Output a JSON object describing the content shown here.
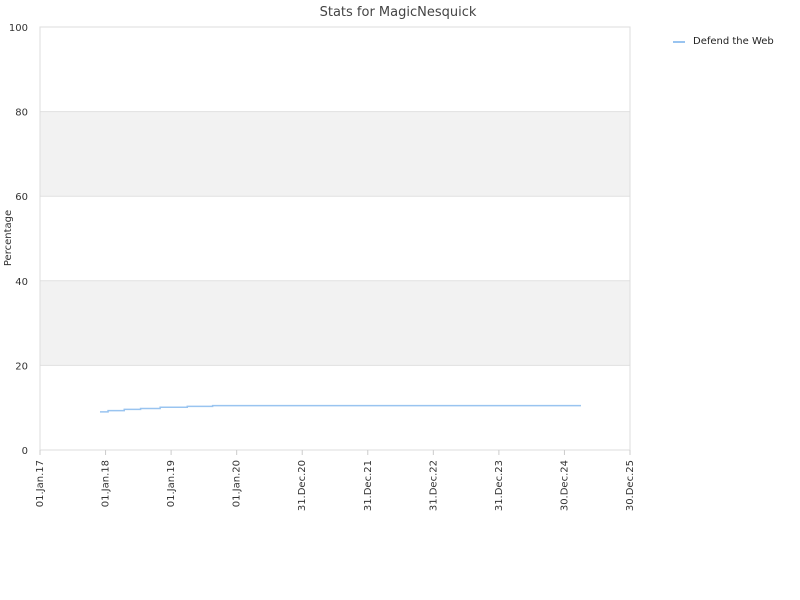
{
  "chart_data": {
    "type": "line",
    "title": "Stats for MagicNesquick",
    "xlabel": "",
    "ylabel": "Percentage",
    "ylim": [
      0,
      100
    ],
    "yticks": [
      0,
      20,
      40,
      60,
      80,
      100
    ],
    "xlim": [
      "2017-01-01",
      "2025-12-30"
    ],
    "xtick_labels": [
      "01.Jan.17",
      "01.Jan.18",
      "01.Jan.19",
      "01.Jan.20",
      "31.Dec.20",
      "31.Dec.21",
      "31.Dec.22",
      "31.Dec.23",
      "30.Dec.24",
      "30.Dec.25"
    ],
    "xtick_dates": [
      "2017-01-01",
      "2018-01-01",
      "2019-01-01",
      "2020-01-01",
      "2020-12-31",
      "2021-12-31",
      "2022-12-31",
      "2023-12-31",
      "2024-12-30",
      "2025-12-30"
    ],
    "grid": true,
    "alternating_bands": true,
    "legend_position": "top-right",
    "series": [
      {
        "name": "Defend the Web",
        "color": "#99c4f0",
        "step": true,
        "points": [
          {
            "x": "2017-12-01",
            "y": 9.0
          },
          {
            "x": "2018-01-15",
            "y": 9.3
          },
          {
            "x": "2018-04-15",
            "y": 9.6
          },
          {
            "x": "2018-07-15",
            "y": 9.8
          },
          {
            "x": "2018-11-01",
            "y": 10.1
          },
          {
            "x": "2019-04-01",
            "y": 10.3
          },
          {
            "x": "2019-08-20",
            "y": 10.5
          },
          {
            "x": "2025-04-01",
            "y": 10.5
          }
        ]
      }
    ]
  }
}
